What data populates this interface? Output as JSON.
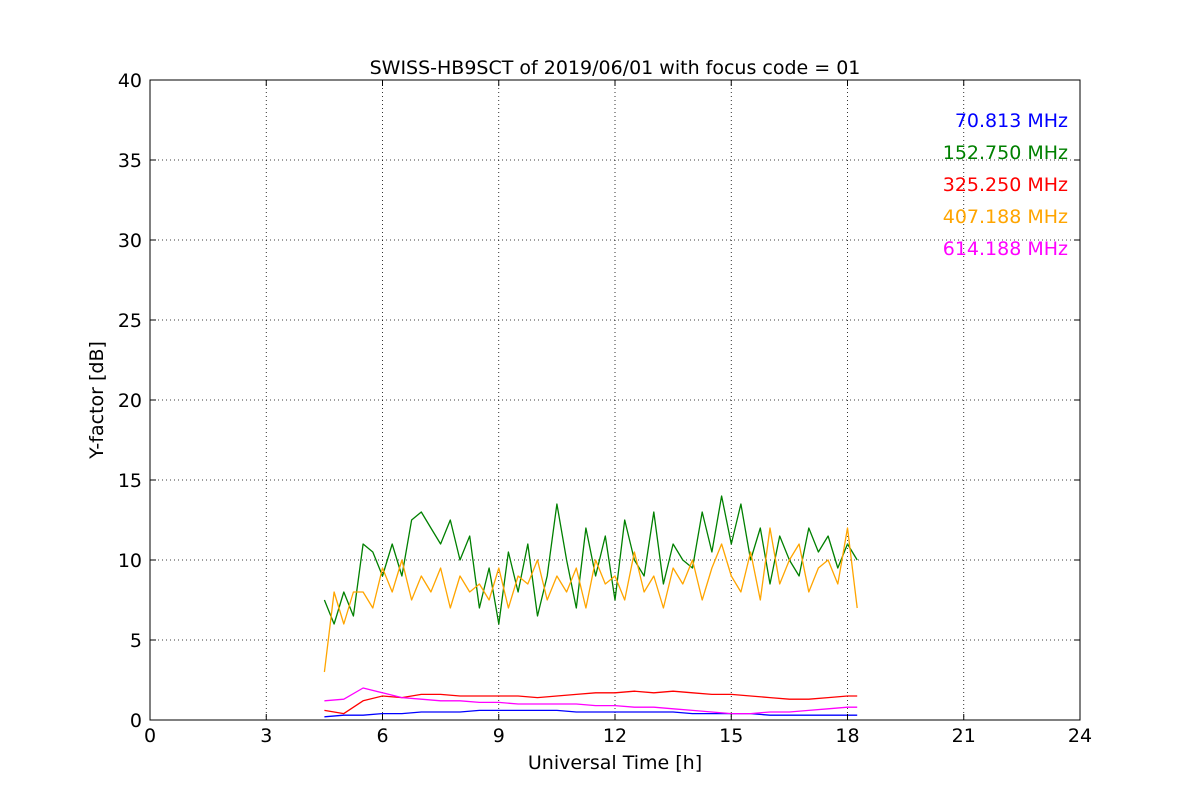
{
  "chart_data": {
    "type": "line",
    "title": "SWISS-HB9SCT of 2019/06/01 with focus code = 01",
    "xlabel": "Universal Time [h]",
    "ylabel": "Y-factor [dB]",
    "xlim": [
      0,
      24
    ],
    "ylim": [
      0,
      40
    ],
    "xticks": [
      0,
      3,
      6,
      9,
      12,
      15,
      18,
      21,
      24
    ],
    "yticks": [
      0,
      5,
      10,
      15,
      20,
      25,
      30,
      35,
      40
    ],
    "grid": true,
    "legend_position": "top-right",
    "series": [
      {
        "name": "70.813 MHz",
        "color": "#0000ff",
        "x": [
          4.5,
          5.0,
          5.5,
          6.0,
          6.5,
          7.0,
          7.5,
          8.0,
          8.5,
          9.0,
          9.5,
          10.0,
          10.5,
          11.0,
          11.5,
          12.0,
          12.5,
          13.0,
          13.5,
          14.0,
          14.5,
          15.0,
          15.5,
          16.0,
          16.5,
          17.0,
          17.5,
          18.0,
          18.25
        ],
        "y": [
          0.2,
          0.3,
          0.3,
          0.4,
          0.4,
          0.5,
          0.5,
          0.5,
          0.6,
          0.6,
          0.6,
          0.6,
          0.6,
          0.5,
          0.5,
          0.5,
          0.5,
          0.5,
          0.5,
          0.4,
          0.4,
          0.4,
          0.4,
          0.3,
          0.3,
          0.3,
          0.3,
          0.3,
          0.3
        ]
      },
      {
        "name": "152.750 MHz",
        "color": "#008000",
        "x": [
          4.5,
          4.75,
          5.0,
          5.25,
          5.5,
          5.75,
          6.0,
          6.25,
          6.5,
          6.75,
          7.0,
          7.25,
          7.5,
          7.75,
          8.0,
          8.25,
          8.5,
          8.75,
          9.0,
          9.25,
          9.5,
          9.75,
          10.0,
          10.25,
          10.5,
          10.75,
          11.0,
          11.25,
          11.5,
          11.75,
          12.0,
          12.25,
          12.5,
          12.75,
          13.0,
          13.25,
          13.5,
          13.75,
          14.0,
          14.25,
          14.5,
          14.75,
          15.0,
          15.25,
          15.5,
          15.75,
          16.0,
          16.25,
          16.5,
          16.75,
          17.0,
          17.25,
          17.5,
          17.75,
          18.0,
          18.25
        ],
        "y": [
          7.5,
          6.0,
          8.0,
          6.5,
          11.0,
          10.5,
          9.0,
          11.0,
          9.0,
          12.5,
          13.0,
          12.0,
          11.0,
          12.5,
          10.0,
          11.5,
          7.0,
          9.5,
          6.0,
          10.5,
          8.0,
          11.0,
          6.5,
          9.0,
          13.5,
          10.0,
          7.0,
          12.0,
          9.0,
          11.5,
          7.5,
          12.5,
          10.0,
          9.0,
          13.0,
          8.5,
          11.0,
          10.0,
          9.5,
          13.0,
          10.5,
          14.0,
          11.0,
          13.5,
          10.0,
          12.0,
          8.5,
          11.5,
          10.0,
          9.0,
          12.0,
          10.5,
          11.5,
          9.5,
          11.0,
          10.0
        ]
      },
      {
        "name": "325.250 MHz",
        "color": "#ff0000",
        "x": [
          4.5,
          5.0,
          5.5,
          6.0,
          6.5,
          7.0,
          7.5,
          8.0,
          8.5,
          9.0,
          9.5,
          10.0,
          10.5,
          11.0,
          11.5,
          12.0,
          12.5,
          13.0,
          13.5,
          14.0,
          14.5,
          15.0,
          15.5,
          16.0,
          16.5,
          17.0,
          17.5,
          18.0,
          18.25
        ],
        "y": [
          0.6,
          0.4,
          1.2,
          1.5,
          1.4,
          1.6,
          1.6,
          1.5,
          1.5,
          1.5,
          1.5,
          1.4,
          1.5,
          1.6,
          1.7,
          1.7,
          1.8,
          1.7,
          1.8,
          1.7,
          1.6,
          1.6,
          1.5,
          1.4,
          1.3,
          1.3,
          1.4,
          1.5,
          1.5
        ]
      },
      {
        "name": "407.188 MHz",
        "color": "#ffa500",
        "x": [
          4.5,
          4.75,
          5.0,
          5.25,
          5.5,
          5.75,
          6.0,
          6.25,
          6.5,
          6.75,
          7.0,
          7.25,
          7.5,
          7.75,
          8.0,
          8.25,
          8.5,
          8.75,
          9.0,
          9.25,
          9.5,
          9.75,
          10.0,
          10.25,
          10.5,
          10.75,
          11.0,
          11.25,
          11.5,
          11.75,
          12.0,
          12.25,
          12.5,
          12.75,
          13.0,
          13.25,
          13.5,
          13.75,
          14.0,
          14.25,
          14.5,
          14.75,
          15.0,
          15.25,
          15.5,
          15.75,
          16.0,
          16.25,
          16.5,
          16.75,
          17.0,
          17.25,
          17.5,
          17.75,
          18.0,
          18.25
        ],
        "y": [
          3.0,
          8.0,
          6.0,
          8.0,
          8.0,
          7.0,
          9.5,
          8.0,
          10.0,
          7.5,
          9.0,
          8.0,
          9.5,
          7.0,
          9.0,
          8.0,
          8.5,
          7.5,
          9.5,
          7.0,
          9.0,
          8.5,
          10.0,
          7.5,
          9.0,
          8.0,
          9.5,
          7.0,
          10.0,
          8.5,
          9.0,
          7.5,
          10.5,
          8.0,
          9.0,
          7.0,
          9.5,
          8.5,
          10.0,
          7.5,
          9.5,
          11.0,
          9.0,
          8.0,
          10.5,
          7.5,
          12.0,
          8.5,
          10.0,
          11.0,
          8.0,
          9.5,
          10.0,
          8.5,
          12.0,
          7.0
        ]
      },
      {
        "name": "614.188 MHz",
        "color": "#ff00ff",
        "x": [
          4.5,
          5.0,
          5.5,
          6.0,
          6.5,
          7.0,
          7.5,
          8.0,
          8.5,
          9.0,
          9.5,
          10.0,
          10.5,
          11.0,
          11.5,
          12.0,
          12.5,
          13.0,
          13.5,
          14.0,
          14.5,
          15.0,
          15.5,
          16.0,
          16.5,
          17.0,
          17.5,
          18.0,
          18.25
        ],
        "y": [
          1.2,
          1.3,
          2.0,
          1.7,
          1.4,
          1.3,
          1.2,
          1.2,
          1.1,
          1.1,
          1.0,
          1.0,
          1.0,
          1.0,
          0.9,
          0.9,
          0.8,
          0.8,
          0.7,
          0.6,
          0.5,
          0.4,
          0.4,
          0.5,
          0.5,
          0.6,
          0.7,
          0.8,
          0.8
        ]
      }
    ]
  }
}
